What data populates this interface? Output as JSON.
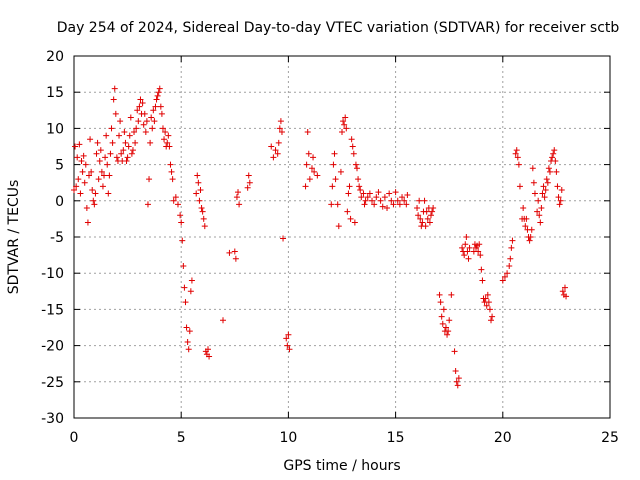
{
  "chart_data": {
    "type": "scatter",
    "title": "Day 254 of 2024, Sidereal Day-to-day VTEC variation (SDTVAR) for receiver sctb",
    "xlabel": "GPS time / hours",
    "ylabel": "SDTVAR / TECUs",
    "xlim": [
      0,
      25
    ],
    "ylim": [
      -30,
      20
    ],
    "xticks": [
      0,
      5,
      10,
      15,
      20,
      25
    ],
    "yticks": [
      -30,
      -25,
      -20,
      -15,
      -10,
      -5,
      0,
      5,
      10,
      15,
      20
    ],
    "grid": true,
    "marker": "+",
    "color": "#e00000",
    "series": [
      {
        "name": "SDTVAR",
        "points": [
          [
            0.0,
            1.5
          ],
          [
            0.05,
            7.5
          ],
          [
            0.1,
            2.0
          ],
          [
            0.15,
            6.0
          ],
          [
            0.2,
            3.0
          ],
          [
            0.25,
            7.8
          ],
          [
            0.3,
            1.0
          ],
          [
            0.35,
            5.5
          ],
          [
            0.4,
            4.0
          ],
          [
            0.45,
            6.2
          ],
          [
            0.5,
            2.5
          ],
          [
            0.55,
            5.0
          ],
          [
            0.6,
            -1.0
          ],
          [
            0.65,
            -3.0
          ],
          [
            0.7,
            3.5
          ],
          [
            0.75,
            8.5
          ],
          [
            0.8,
            4.0
          ],
          [
            0.85,
            1.5
          ],
          [
            0.9,
            0.0
          ],
          [
            0.95,
            -0.5
          ],
          [
            1.0,
            1.0
          ],
          [
            1.05,
            6.5
          ],
          [
            1.1,
            8.0
          ],
          [
            1.15,
            3.0
          ],
          [
            1.2,
            5.5
          ],
          [
            1.25,
            7.0
          ],
          [
            1.3,
            4.0
          ],
          [
            1.35,
            2.0
          ],
          [
            1.4,
            3.5
          ],
          [
            1.45,
            6.0
          ],
          [
            1.5,
            9.0
          ],
          [
            1.55,
            5.0
          ],
          [
            1.6,
            1.0
          ],
          [
            1.65,
            3.5
          ],
          [
            1.7,
            6.5
          ],
          [
            1.75,
            10.0
          ],
          [
            1.8,
            8.0
          ],
          [
            1.85,
            14.0
          ],
          [
            1.9,
            15.5
          ],
          [
            1.95,
            12.0
          ],
          [
            2.0,
            6.0
          ],
          [
            2.05,
            5.5
          ],
          [
            2.1,
            9.0
          ],
          [
            2.15,
            11.0
          ],
          [
            2.2,
            6.5
          ],
          [
            2.25,
            5.5
          ],
          [
            2.3,
            7.0
          ],
          [
            2.35,
            9.5
          ],
          [
            2.4,
            8.0
          ],
          [
            2.45,
            5.5
          ],
          [
            2.5,
            6.0
          ],
          [
            2.55,
            7.5
          ],
          [
            2.6,
            9.0
          ],
          [
            2.65,
            11.5
          ],
          [
            2.7,
            6.5
          ],
          [
            2.75,
            7.0
          ],
          [
            2.8,
            9.5
          ],
          [
            2.85,
            8.0
          ],
          [
            2.9,
            10.0
          ],
          [
            2.95,
            12.5
          ],
          [
            3.0,
            11.0
          ],
          [
            3.05,
            13.0
          ],
          [
            3.1,
            14.0
          ],
          [
            3.15,
            12.0
          ],
          [
            3.2,
            13.5
          ],
          [
            3.25,
            10.5
          ],
          [
            3.3,
            12.0
          ],
          [
            3.35,
            9.5
          ],
          [
            3.4,
            11.0
          ],
          [
            3.45,
            -0.5
          ],
          [
            3.5,
            3.0
          ],
          [
            3.55,
            8.0
          ],
          [
            3.6,
            11.5
          ],
          [
            3.65,
            10.0
          ],
          [
            3.7,
            12.5
          ],
          [
            3.75,
            11.0
          ],
          [
            3.8,
            13.0
          ],
          [
            3.85,
            14.0
          ],
          [
            3.9,
            14.5
          ],
          [
            3.95,
            15.0
          ],
          [
            4.0,
            15.5
          ],
          [
            4.05,
            13.0
          ],
          [
            4.1,
            12.0
          ],
          [
            4.15,
            10.0
          ],
          [
            4.2,
            8.5
          ],
          [
            4.25,
            9.5
          ],
          [
            4.3,
            7.5
          ],
          [
            4.35,
            8.0
          ],
          [
            4.4,
            9.0
          ],
          [
            4.45,
            7.5
          ],
          [
            4.5,
            5.0
          ],
          [
            4.55,
            4.0
          ],
          [
            4.6,
            3.0
          ],
          [
            4.65,
            0.0
          ],
          [
            4.75,
            0.5
          ],
          [
            4.85,
            -0.5
          ],
          [
            4.95,
            -2.0
          ],
          [
            5.0,
            -3.0
          ],
          [
            5.05,
            -5.5
          ],
          [
            5.1,
            -9.0
          ],
          [
            5.15,
            -12.0
          ],
          [
            5.2,
            -14.0
          ],
          [
            5.25,
            -17.5
          ],
          [
            5.3,
            -19.5
          ],
          [
            5.35,
            -20.5
          ],
          [
            5.4,
            -18.0
          ],
          [
            5.45,
            -12.5
          ],
          [
            5.5,
            -11.0
          ],
          [
            5.7,
            1.0
          ],
          [
            5.75,
            3.5
          ],
          [
            5.8,
            2.5
          ],
          [
            5.85,
            0.0
          ],
          [
            5.9,
            1.5
          ],
          [
            5.95,
            -1.0
          ],
          [
            6.0,
            -1.5
          ],
          [
            6.05,
            -2.5
          ],
          [
            6.1,
            -3.5
          ],
          [
            6.15,
            -20.8
          ],
          [
            6.2,
            -21.2
          ],
          [
            6.25,
            -20.5
          ],
          [
            6.3,
            -21.5
          ],
          [
            6.95,
            -16.5
          ],
          [
            7.25,
            -7.2
          ],
          [
            7.5,
            -7.0
          ],
          [
            7.55,
            -8.0
          ],
          [
            7.6,
            0.5
          ],
          [
            7.65,
            1.2
          ],
          [
            7.7,
            -0.5
          ],
          [
            8.1,
            1.8
          ],
          [
            8.15,
            3.5
          ],
          [
            8.2,
            2.5
          ],
          [
            9.2,
            7.5
          ],
          [
            9.3,
            6.0
          ],
          [
            9.4,
            7.0
          ],
          [
            9.5,
            6.5
          ],
          [
            9.55,
            8.0
          ],
          [
            9.6,
            10.0
          ],
          [
            9.65,
            11.0
          ],
          [
            9.7,
            9.5
          ],
          [
            9.75,
            -5.2
          ],
          [
            9.9,
            -19.0
          ],
          [
            9.95,
            -20.0
          ],
          [
            10.0,
            -18.5
          ],
          [
            10.05,
            -20.5
          ],
          [
            10.8,
            2.0
          ],
          [
            10.85,
            5.0
          ],
          [
            10.9,
            9.5
          ],
          [
            10.95,
            6.5
          ],
          [
            11.0,
            3.0
          ],
          [
            11.1,
            4.5
          ],
          [
            11.15,
            6.0
          ],
          [
            11.2,
            4.0
          ],
          [
            11.35,
            3.5
          ],
          [
            12.0,
            -0.5
          ],
          [
            12.05,
            2.0
          ],
          [
            12.1,
            5.0
          ],
          [
            12.15,
            6.5
          ],
          [
            12.2,
            3.0
          ],
          [
            12.3,
            -0.5
          ],
          [
            12.35,
            -3.5
          ],
          [
            12.45,
            4.0
          ],
          [
            12.5,
            9.5
          ],
          [
            12.55,
            11.0
          ],
          [
            12.6,
            10.5
          ],
          [
            12.65,
            11.5
          ],
          [
            12.7,
            10.0
          ],
          [
            12.75,
            -1.5
          ],
          [
            12.8,
            1.0
          ],
          [
            12.85,
            2.0
          ],
          [
            12.9,
            -2.5
          ],
          [
            12.95,
            8.5
          ],
          [
            13.0,
            7.5
          ],
          [
            13.05,
            6.5
          ],
          [
            13.1,
            -3.0
          ],
          [
            13.15,
            5.0
          ],
          [
            13.2,
            4.5
          ],
          [
            13.25,
            3.0
          ],
          [
            13.3,
            2.0
          ],
          [
            13.35,
            1.5
          ],
          [
            13.4,
            0.5
          ],
          [
            13.5,
            1.0
          ],
          [
            13.55,
            -0.5
          ],
          [
            13.6,
            0.0
          ],
          [
            13.7,
            0.5
          ],
          [
            13.8,
            1.0
          ],
          [
            13.9,
            0.0
          ],
          [
            14.0,
            -0.5
          ],
          [
            14.1,
            0.5
          ],
          [
            14.2,
            1.2
          ],
          [
            14.3,
            0.0
          ],
          [
            14.4,
            -0.8
          ],
          [
            14.5,
            0.5
          ],
          [
            14.6,
            -1.0
          ],
          [
            14.7,
            1.0
          ],
          [
            14.8,
            0.0
          ],
          [
            14.9,
            -0.5
          ],
          [
            15.0,
            1.2
          ],
          [
            15.1,
            0.0
          ],
          [
            15.2,
            -0.5
          ],
          [
            15.3,
            0.5
          ],
          [
            15.4,
            0.0
          ],
          [
            15.5,
            -0.5
          ],
          [
            15.55,
            0.8
          ],
          [
            16.0,
            -1.0
          ],
          [
            16.05,
            -2.0
          ],
          [
            16.1,
            0.0
          ],
          [
            16.15,
            -2.5
          ],
          [
            16.2,
            -3.5
          ],
          [
            16.25,
            -3.0
          ],
          [
            16.3,
            -1.5
          ],
          [
            16.35,
            0.0
          ],
          [
            16.4,
            -3.5
          ],
          [
            16.45,
            -1.5
          ],
          [
            16.5,
            -2.5
          ],
          [
            16.55,
            -1.0
          ],
          [
            16.6,
            -3.0
          ],
          [
            16.65,
            -2.0
          ],
          [
            16.7,
            -1.5
          ],
          [
            16.75,
            -1.0
          ],
          [
            17.05,
            -13.0
          ],
          [
            17.1,
            -14.0
          ],
          [
            17.15,
            -16.0
          ],
          [
            17.2,
            -17.0
          ],
          [
            17.25,
            -15.0
          ],
          [
            17.3,
            -18.0
          ],
          [
            17.35,
            -17.5
          ],
          [
            17.4,
            -18.5
          ],
          [
            17.45,
            -18.0
          ],
          [
            17.5,
            -16.5
          ],
          [
            17.6,
            -13.0
          ],
          [
            17.75,
            -20.8
          ],
          [
            17.8,
            -23.5
          ],
          [
            17.85,
            -25.0
          ],
          [
            17.9,
            -25.5
          ],
          [
            17.95,
            -24.5
          ],
          [
            18.1,
            -6.5
          ],
          [
            18.15,
            -7.0
          ],
          [
            18.2,
            -7.5
          ],
          [
            18.25,
            -6.0
          ],
          [
            18.3,
            -5.0
          ],
          [
            18.35,
            -7.0
          ],
          [
            18.4,
            -8.0
          ],
          [
            18.45,
            -6.5
          ],
          [
            18.65,
            -7.0
          ],
          [
            18.7,
            -6.0
          ],
          [
            18.75,
            -6.5
          ],
          [
            18.8,
            -6.2
          ],
          [
            18.85,
            -7.0
          ],
          [
            18.9,
            -6.0
          ],
          [
            18.95,
            -7.5
          ],
          [
            19.0,
            -9.5
          ],
          [
            19.05,
            -11.0
          ],
          [
            19.1,
            -13.5
          ],
          [
            19.15,
            -14.0
          ],
          [
            19.2,
            -13.5
          ],
          [
            19.25,
            -14.5
          ],
          [
            19.3,
            -13.0
          ],
          [
            19.35,
            -14.0
          ],
          [
            19.4,
            -15.0
          ],
          [
            19.45,
            -16.5
          ],
          [
            19.5,
            -16.0
          ],
          [
            20.0,
            -11.0
          ],
          [
            20.1,
            -10.5
          ],
          [
            20.2,
            -10.0
          ],
          [
            20.3,
            -9.0
          ],
          [
            20.35,
            -8.0
          ],
          [
            20.4,
            -6.5
          ],
          [
            20.45,
            -5.5
          ],
          [
            20.6,
            6.5
          ],
          [
            20.65,
            7.0
          ],
          [
            20.7,
            6.0
          ],
          [
            20.75,
            5.0
          ],
          [
            20.8,
            2.0
          ],
          [
            20.9,
            -2.5
          ],
          [
            20.95,
            -1.0
          ],
          [
            21.0,
            -2.5
          ],
          [
            21.05,
            -3.5
          ],
          [
            21.1,
            -2.5
          ],
          [
            21.15,
            -4.0
          ],
          [
            21.2,
            -5.0
          ],
          [
            21.25,
            -5.5
          ],
          [
            21.3,
            -5.0
          ],
          [
            21.35,
            -4.0
          ],
          [
            21.4,
            4.5
          ],
          [
            21.45,
            2.5
          ],
          [
            21.5,
            1.0
          ],
          [
            21.6,
            -1.5
          ],
          [
            21.65,
            0.0
          ],
          [
            21.7,
            -2.0
          ],
          [
            21.75,
            -3.0
          ],
          [
            21.8,
            -1.0
          ],
          [
            21.85,
            1.0
          ],
          [
            21.9,
            2.0
          ],
          [
            21.95,
            0.5
          ],
          [
            22.0,
            1.5
          ],
          [
            22.05,
            3.0
          ],
          [
            22.1,
            2.5
          ],
          [
            22.15,
            4.5
          ],
          [
            22.2,
            4.0
          ],
          [
            22.25,
            5.5
          ],
          [
            22.3,
            6.0
          ],
          [
            22.35,
            6.5
          ],
          [
            22.4,
            7.0
          ],
          [
            22.45,
            5.5
          ],
          [
            22.5,
            4.0
          ],
          [
            22.55,
            2.0
          ],
          [
            22.6,
            0.5
          ],
          [
            22.65,
            -0.5
          ],
          [
            22.7,
            0.0
          ],
          [
            22.75,
            1.5
          ],
          [
            22.8,
            -12.5
          ],
          [
            22.85,
            -13.0
          ],
          [
            22.9,
            -12.0
          ],
          [
            22.95,
            -13.2
          ]
        ]
      }
    ]
  }
}
